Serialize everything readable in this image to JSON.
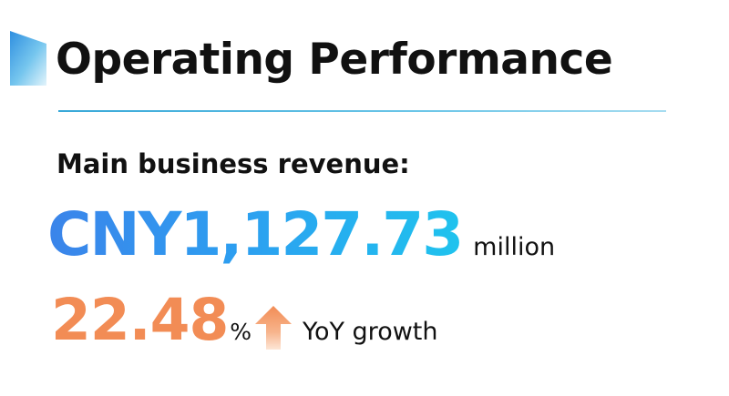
{
  "header": {
    "title": "Operating Performance"
  },
  "metric": {
    "label": "Main business revenue:",
    "value": "CNY1,127.73",
    "unit": "million"
  },
  "growth": {
    "value": "22.48",
    "percent_sign": "%",
    "label": "YoY growth",
    "direction": "up"
  },
  "colors": {
    "revenue_gradient": [
      "#3b84ea",
      "#1fc3ee"
    ],
    "growth": "#f28c55",
    "divider": "#38a8d8"
  },
  "icons": {
    "title_marker": "flag-icon",
    "trend": "up-arrow-icon"
  }
}
